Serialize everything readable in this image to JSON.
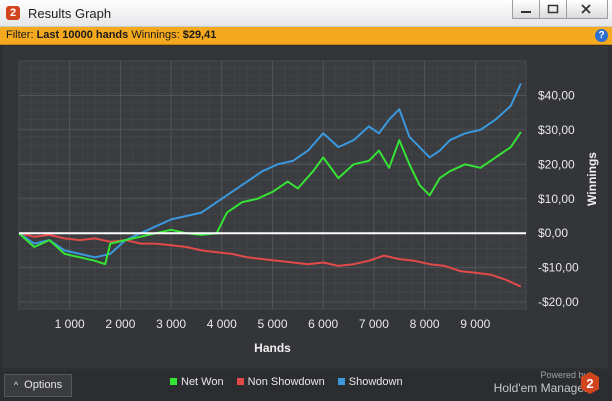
{
  "window": {
    "title": "Results Graph",
    "app_icon_text": "2"
  },
  "filter": {
    "prefix": "Filter:",
    "value": "Last 10000 hands",
    "winnings_label": "Winnings:",
    "winnings_value": "$29,41",
    "help_icon": "?"
  },
  "options": {
    "label": "Options",
    "icon": "^"
  },
  "brand": {
    "powered": "Powered by",
    "name": "Hold'em Manager",
    "logo_text": "2"
  },
  "colors": {
    "net_won": "#35e435",
    "non_showdown": "#e24a4a",
    "showdown": "#3a98dd",
    "zero_line": "#ffffff",
    "filter_bar": "#f4a91f"
  },
  "chart_data": {
    "type": "line",
    "xlabel": "Hands",
    "ylabel": "Winnings",
    "xlim": [
      0,
      10000
    ],
    "ylim": [
      -22,
      50
    ],
    "grid": true,
    "legend_placement": "bottom",
    "x_ticks": [
      1000,
      2000,
      3000,
      4000,
      5000,
      6000,
      7000,
      8000,
      9000
    ],
    "x_tick_labels": [
      "1 000",
      "2 000",
      "3 000",
      "4 000",
      "5 000",
      "6 000",
      "7 000",
      "8 000",
      "9 000"
    ],
    "y_ticks": [
      40,
      30,
      20,
      10,
      0,
      -10,
      -20
    ],
    "y_tick_labels": [
      "$40,00",
      "$30,00",
      "$20,00",
      "$10,00",
      "$0,00",
      "-$10,00",
      "-$20,00"
    ],
    "series": [
      {
        "name": "Net Won",
        "x": [
          0,
          300,
          600,
          900,
          1200,
          1500,
          1700,
          1800,
          2100,
          2400,
          2700,
          3000,
          3300,
          3600,
          3900,
          4100,
          4400,
          4700,
          5000,
          5300,
          5500,
          5800,
          6000,
          6300,
          6600,
          6900,
          7100,
          7300,
          7500,
          7700,
          7900,
          8100,
          8300,
          8500,
          8800,
          9100,
          9400,
          9700,
          9900
        ],
        "values": [
          0,
          -4,
          -2,
          -6,
          -7,
          -8,
          -9,
          -3,
          -2,
          -1,
          0,
          1,
          0,
          -0.5,
          0,
          6,
          9,
          10,
          12,
          15,
          13,
          18,
          22,
          16,
          20,
          21,
          24,
          19,
          27,
          20,
          14,
          11,
          16,
          18,
          20,
          19,
          22,
          25,
          29.4
        ]
      },
      {
        "name": "Non Showdown",
        "x": [
          0,
          300,
          600,
          900,
          1200,
          1500,
          1800,
          2100,
          2400,
          2700,
          3000,
          3300,
          3600,
          3900,
          4200,
          4500,
          4800,
          5100,
          5400,
          5700,
          6000,
          6300,
          6600,
          6900,
          7200,
          7500,
          7800,
          8100,
          8400,
          8700,
          9000,
          9300,
          9600,
          9900
        ],
        "values": [
          0,
          -1,
          -0.5,
          -1.5,
          -2,
          -1.5,
          -2.5,
          -2,
          -3,
          -3,
          -3.5,
          -4,
          -5,
          -5.5,
          -6,
          -7,
          -7.5,
          -8,
          -8.5,
          -9,
          -8.5,
          -9.5,
          -9,
          -8,
          -6.5,
          -7.5,
          -8,
          -9,
          -9.5,
          -11,
          -11.5,
          -12,
          -13.5,
          -15.5
        ]
      },
      {
        "name": "Showdown",
        "x": [
          0,
          300,
          600,
          900,
          1200,
          1500,
          1800,
          2100,
          2400,
          2700,
          3000,
          3300,
          3600,
          3900,
          4200,
          4500,
          4800,
          5100,
          5400,
          5700,
          6000,
          6300,
          6600,
          6900,
          7100,
          7300,
          7500,
          7700,
          7900,
          8100,
          8300,
          8500,
          8800,
          9100,
          9400,
          9700,
          9900
        ],
        "values": [
          0,
          -3,
          -2,
          -5,
          -6,
          -7,
          -6,
          -2,
          0,
          2,
          4,
          5,
          6,
          9,
          12,
          15,
          18,
          20,
          21,
          24,
          29,
          25,
          27,
          31,
          29,
          33,
          36,
          28,
          25,
          22,
          24,
          27,
          29,
          30,
          33,
          37,
          43.5
        ]
      }
    ]
  }
}
